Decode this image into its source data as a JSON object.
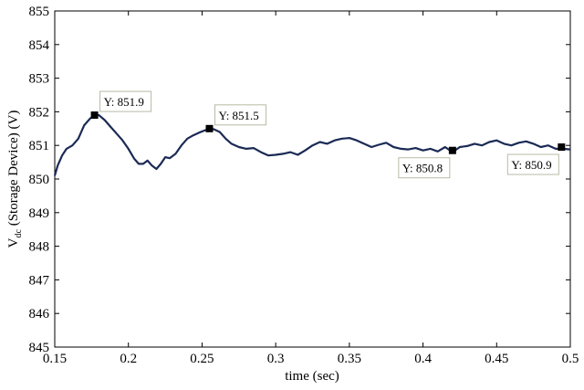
{
  "chart_data": {
    "type": "line",
    "title": "",
    "xlabel": "time (sec)",
    "ylabel_main": "V",
    "ylabel_sub": "dc",
    "ylabel_rest": " (Storage Device) (V)",
    "xlim": [
      0.15,
      0.5
    ],
    "ylim": [
      845,
      855
    ],
    "xticks": [
      0.15,
      0.2,
      0.25,
      0.3,
      0.35,
      0.4,
      0.45,
      0.5
    ],
    "xtick_labels": [
      "0.15",
      "0.2",
      "0.25",
      "0.3",
      "0.35",
      "0.4",
      "0.45",
      "0.5"
    ],
    "yticks": [
      845,
      846,
      847,
      848,
      849,
      850,
      851,
      852,
      853,
      854,
      855
    ],
    "ytick_labels": [
      "845",
      "846",
      "847",
      "848",
      "849",
      "850",
      "851",
      "852",
      "853",
      "854",
      "855"
    ],
    "grid": false,
    "line_color": "#1b2a55",
    "series": [
      {
        "x": [
          0.15,
          0.152,
          0.155,
          0.158,
          0.162,
          0.166,
          0.17,
          0.174,
          0.177,
          0.18,
          0.184,
          0.188,
          0.192,
          0.196,
          0.2,
          0.204,
          0.207,
          0.21,
          0.213,
          0.216,
          0.219,
          0.222,
          0.225,
          0.228,
          0.232,
          0.236,
          0.24,
          0.244,
          0.248,
          0.252,
          0.255,
          0.258,
          0.262,
          0.266,
          0.27,
          0.275,
          0.28,
          0.285,
          0.29,
          0.295,
          0.3,
          0.305,
          0.31,
          0.315,
          0.32,
          0.325,
          0.33,
          0.335,
          0.34,
          0.345,
          0.35,
          0.355,
          0.36,
          0.365,
          0.37,
          0.375,
          0.38,
          0.385,
          0.39,
          0.395,
          0.4,
          0.405,
          0.41,
          0.415,
          0.42,
          0.425,
          0.43,
          0.435,
          0.44,
          0.445,
          0.45,
          0.455,
          0.46,
          0.465,
          0.47,
          0.475,
          0.48,
          0.485,
          0.49,
          0.495,
          0.5
        ],
        "y": [
          850.1,
          850.4,
          850.7,
          850.9,
          851.0,
          851.2,
          851.6,
          851.8,
          851.9,
          851.9,
          851.75,
          851.55,
          851.35,
          851.15,
          850.9,
          850.6,
          850.45,
          850.45,
          850.55,
          850.4,
          850.3,
          850.45,
          850.65,
          850.62,
          850.75,
          851.0,
          851.2,
          851.3,
          851.38,
          851.45,
          851.5,
          851.48,
          851.4,
          851.2,
          851.05,
          850.95,
          850.9,
          850.92,
          850.8,
          850.7,
          850.72,
          850.75,
          850.8,
          850.72,
          850.85,
          851.0,
          851.1,
          851.05,
          851.15,
          851.2,
          851.22,
          851.15,
          851.05,
          850.95,
          851.02,
          851.08,
          850.95,
          850.9,
          850.88,
          850.92,
          850.85,
          850.9,
          850.82,
          850.95,
          850.8,
          850.95,
          850.98,
          851.05,
          851.0,
          851.1,
          851.15,
          851.05,
          851.0,
          851.08,
          851.12,
          851.05,
          850.95,
          851.0,
          850.9,
          850.9,
          850.88
        ]
      }
    ],
    "annotations": [
      {
        "x": 0.177,
        "y": 851.9,
        "label": "Y: 851.9",
        "box": "above-right"
      },
      {
        "x": 0.255,
        "y": 851.5,
        "label": "Y: 851.5",
        "box": "above-right"
      },
      {
        "x": 0.42,
        "y": 850.85,
        "label": "Y: 850.8",
        "box": "below-left"
      },
      {
        "x": 0.494,
        "y": 850.95,
        "label": "Y: 850.9",
        "box": "below-left"
      }
    ]
  }
}
